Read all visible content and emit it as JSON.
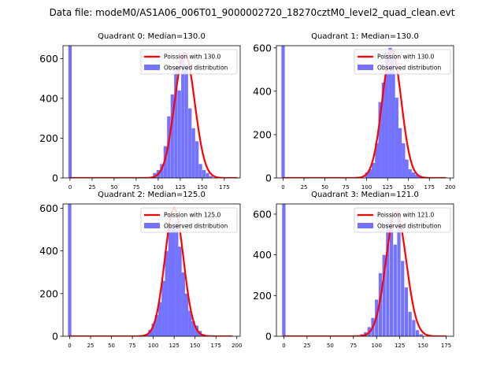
{
  "figure_title": "Data file: modeM0/AS1A06_006T01_9000002720_18270cztM0_level2_quad_clean.evt",
  "colors": {
    "hist": "#0000ff",
    "fit": "#ff0000"
  },
  "chart_data": [
    {
      "type": "bar",
      "title": "Quadrant 0: Median=130.0",
      "legend": [
        "Poission with 130.0",
        "Observed distribution"
      ],
      "legend_position": "top-right",
      "xlim": [
        -8,
        193
      ],
      "ylim": [
        0,
        665
      ],
      "xticks": [
        0,
        25,
        50,
        75,
        100,
        125,
        150,
        175
      ],
      "yticks": [
        0,
        200,
        400,
        600
      ],
      "bin_width": 3.8,
      "hist_x": [
        0,
        96,
        100,
        104,
        108,
        112,
        116,
        120,
        124,
        128,
        132,
        136,
        140,
        144,
        148,
        152,
        156,
        160
      ],
      "hist_y": [
        665,
        25,
        40,
        70,
        160,
        310,
        420,
        560,
        440,
        620,
        560,
        350,
        250,
        185,
        70,
        40,
        25,
        10
      ],
      "fit_mu": 130,
      "fit_peak": 630,
      "fit_range": [
        0,
        190
      ]
    },
    {
      "type": "bar",
      "title": "Quadrant 1: Median=130.0",
      "legend": [
        "Poission with 130.0",
        "Observed distribution"
      ],
      "legend_position": "top-right",
      "xlim": [
        -8,
        204
      ],
      "ylim": [
        0,
        610
      ],
      "xticks": [
        0,
        25,
        50,
        75,
        100,
        125,
        150,
        175,
        200
      ],
      "yticks": [
        0,
        200,
        400,
        600
      ],
      "bin_width": 4.0,
      "hist_x": [
        0,
        100,
        104,
        108,
        112,
        116,
        120,
        124,
        128,
        132,
        136,
        140,
        144,
        148,
        152,
        156,
        160,
        164,
        168,
        172
      ],
      "hist_y": [
        610,
        25,
        40,
        70,
        160,
        350,
        440,
        580,
        600,
        560,
        370,
        230,
        160,
        85,
        40,
        25,
        15,
        10,
        5,
        3
      ],
      "fit_mu": 130,
      "fit_peak": 590,
      "fit_range": [
        0,
        195
      ]
    },
    {
      "type": "bar",
      "title": "Quadrant 2: Median=125.0",
      "legend": [
        "Poission with 125.0",
        "Observed distribution"
      ],
      "legend_position": "top-right",
      "xlim": [
        -8,
        204
      ],
      "ylim": [
        0,
        620
      ],
      "xticks": [
        0,
        25,
        50,
        75,
        100,
        125,
        150,
        175,
        200
      ],
      "yticks": [
        0,
        200,
        400,
        600
      ],
      "bin_width": 4.0,
      "hist_x": [
        0,
        88,
        92,
        96,
        100,
        104,
        108,
        112,
        116,
        120,
        124,
        128,
        132,
        136,
        140,
        144,
        148,
        152,
        156,
        160,
        164
      ],
      "hist_y": [
        620,
        5,
        10,
        30,
        60,
        100,
        160,
        260,
        400,
        520,
        510,
        540,
        420,
        300,
        200,
        120,
        70,
        50,
        25,
        10,
        5
      ],
      "fit_mu": 125,
      "fit_peak": 600,
      "fit_range": [
        0,
        195
      ]
    },
    {
      "type": "bar",
      "title": "Quadrant 3: Median=121.0",
      "legend": [
        "Poission with 121.0",
        "Observed distribution"
      ],
      "legend_position": "top-right",
      "xlim": [
        -8,
        183
      ],
      "ylim": [
        0,
        650
      ],
      "xticks": [
        0,
        25,
        50,
        75,
        100,
        125,
        150,
        175
      ],
      "yticks": [
        0,
        200,
        400,
        600
      ],
      "bin_width": 3.6,
      "hist_x": [
        0,
        84,
        88,
        92,
        96,
        100,
        104,
        108,
        112,
        116,
        120,
        124,
        128,
        132,
        136,
        140,
        144,
        148
      ],
      "hist_y": [
        650,
        10,
        20,
        45,
        90,
        180,
        310,
        400,
        560,
        600,
        450,
        610,
        370,
        240,
        120,
        80,
        30,
        10
      ],
      "fit_mu": 121,
      "fit_peak": 610,
      "fit_range": [
        0,
        175
      ]
    }
  ]
}
